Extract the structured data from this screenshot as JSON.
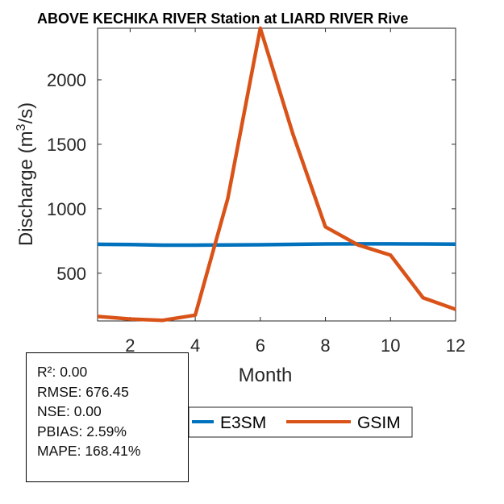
{
  "chart_data": {
    "type": "line",
    "title": "ABOVE KECHIKA RIVER  Station at  LIARD RIVER  Rive",
    "xlabel": "Month",
    "ylabel_main": "Discharge (m",
    "ylabel_sup": "3",
    "ylabel_tail": "/s)",
    "xlim": [
      1,
      12
    ],
    "ylim": [
      130,
      2400
    ],
    "xticks": [
      2,
      4,
      6,
      8,
      10,
      12
    ],
    "yticks": [
      500,
      1000,
      1500,
      2000
    ],
    "x": [
      1,
      2,
      3,
      4,
      5,
      6,
      7,
      8,
      9,
      10,
      11,
      12
    ],
    "series": [
      {
        "name": "E3SM",
        "color": "#0072BD",
        "values": [
          725,
          722,
          718,
          718,
          720,
          721,
          724,
          727,
          728,
          728,
          727,
          726
        ]
      },
      {
        "name": "GSIM",
        "color": "#D95319",
        "values": [
          165,
          145,
          135,
          175,
          1080,
          2400,
          1580,
          860,
          720,
          640,
          310,
          220
        ]
      }
    ],
    "legend_location": "below"
  },
  "stats": {
    "r2": "R²: 0.00",
    "rmse": "RMSE: 676.45",
    "nse": "NSE: 0.00",
    "pbias": "PBIAS: 2.59%",
    "mape": "MAPE: 168.41%"
  }
}
